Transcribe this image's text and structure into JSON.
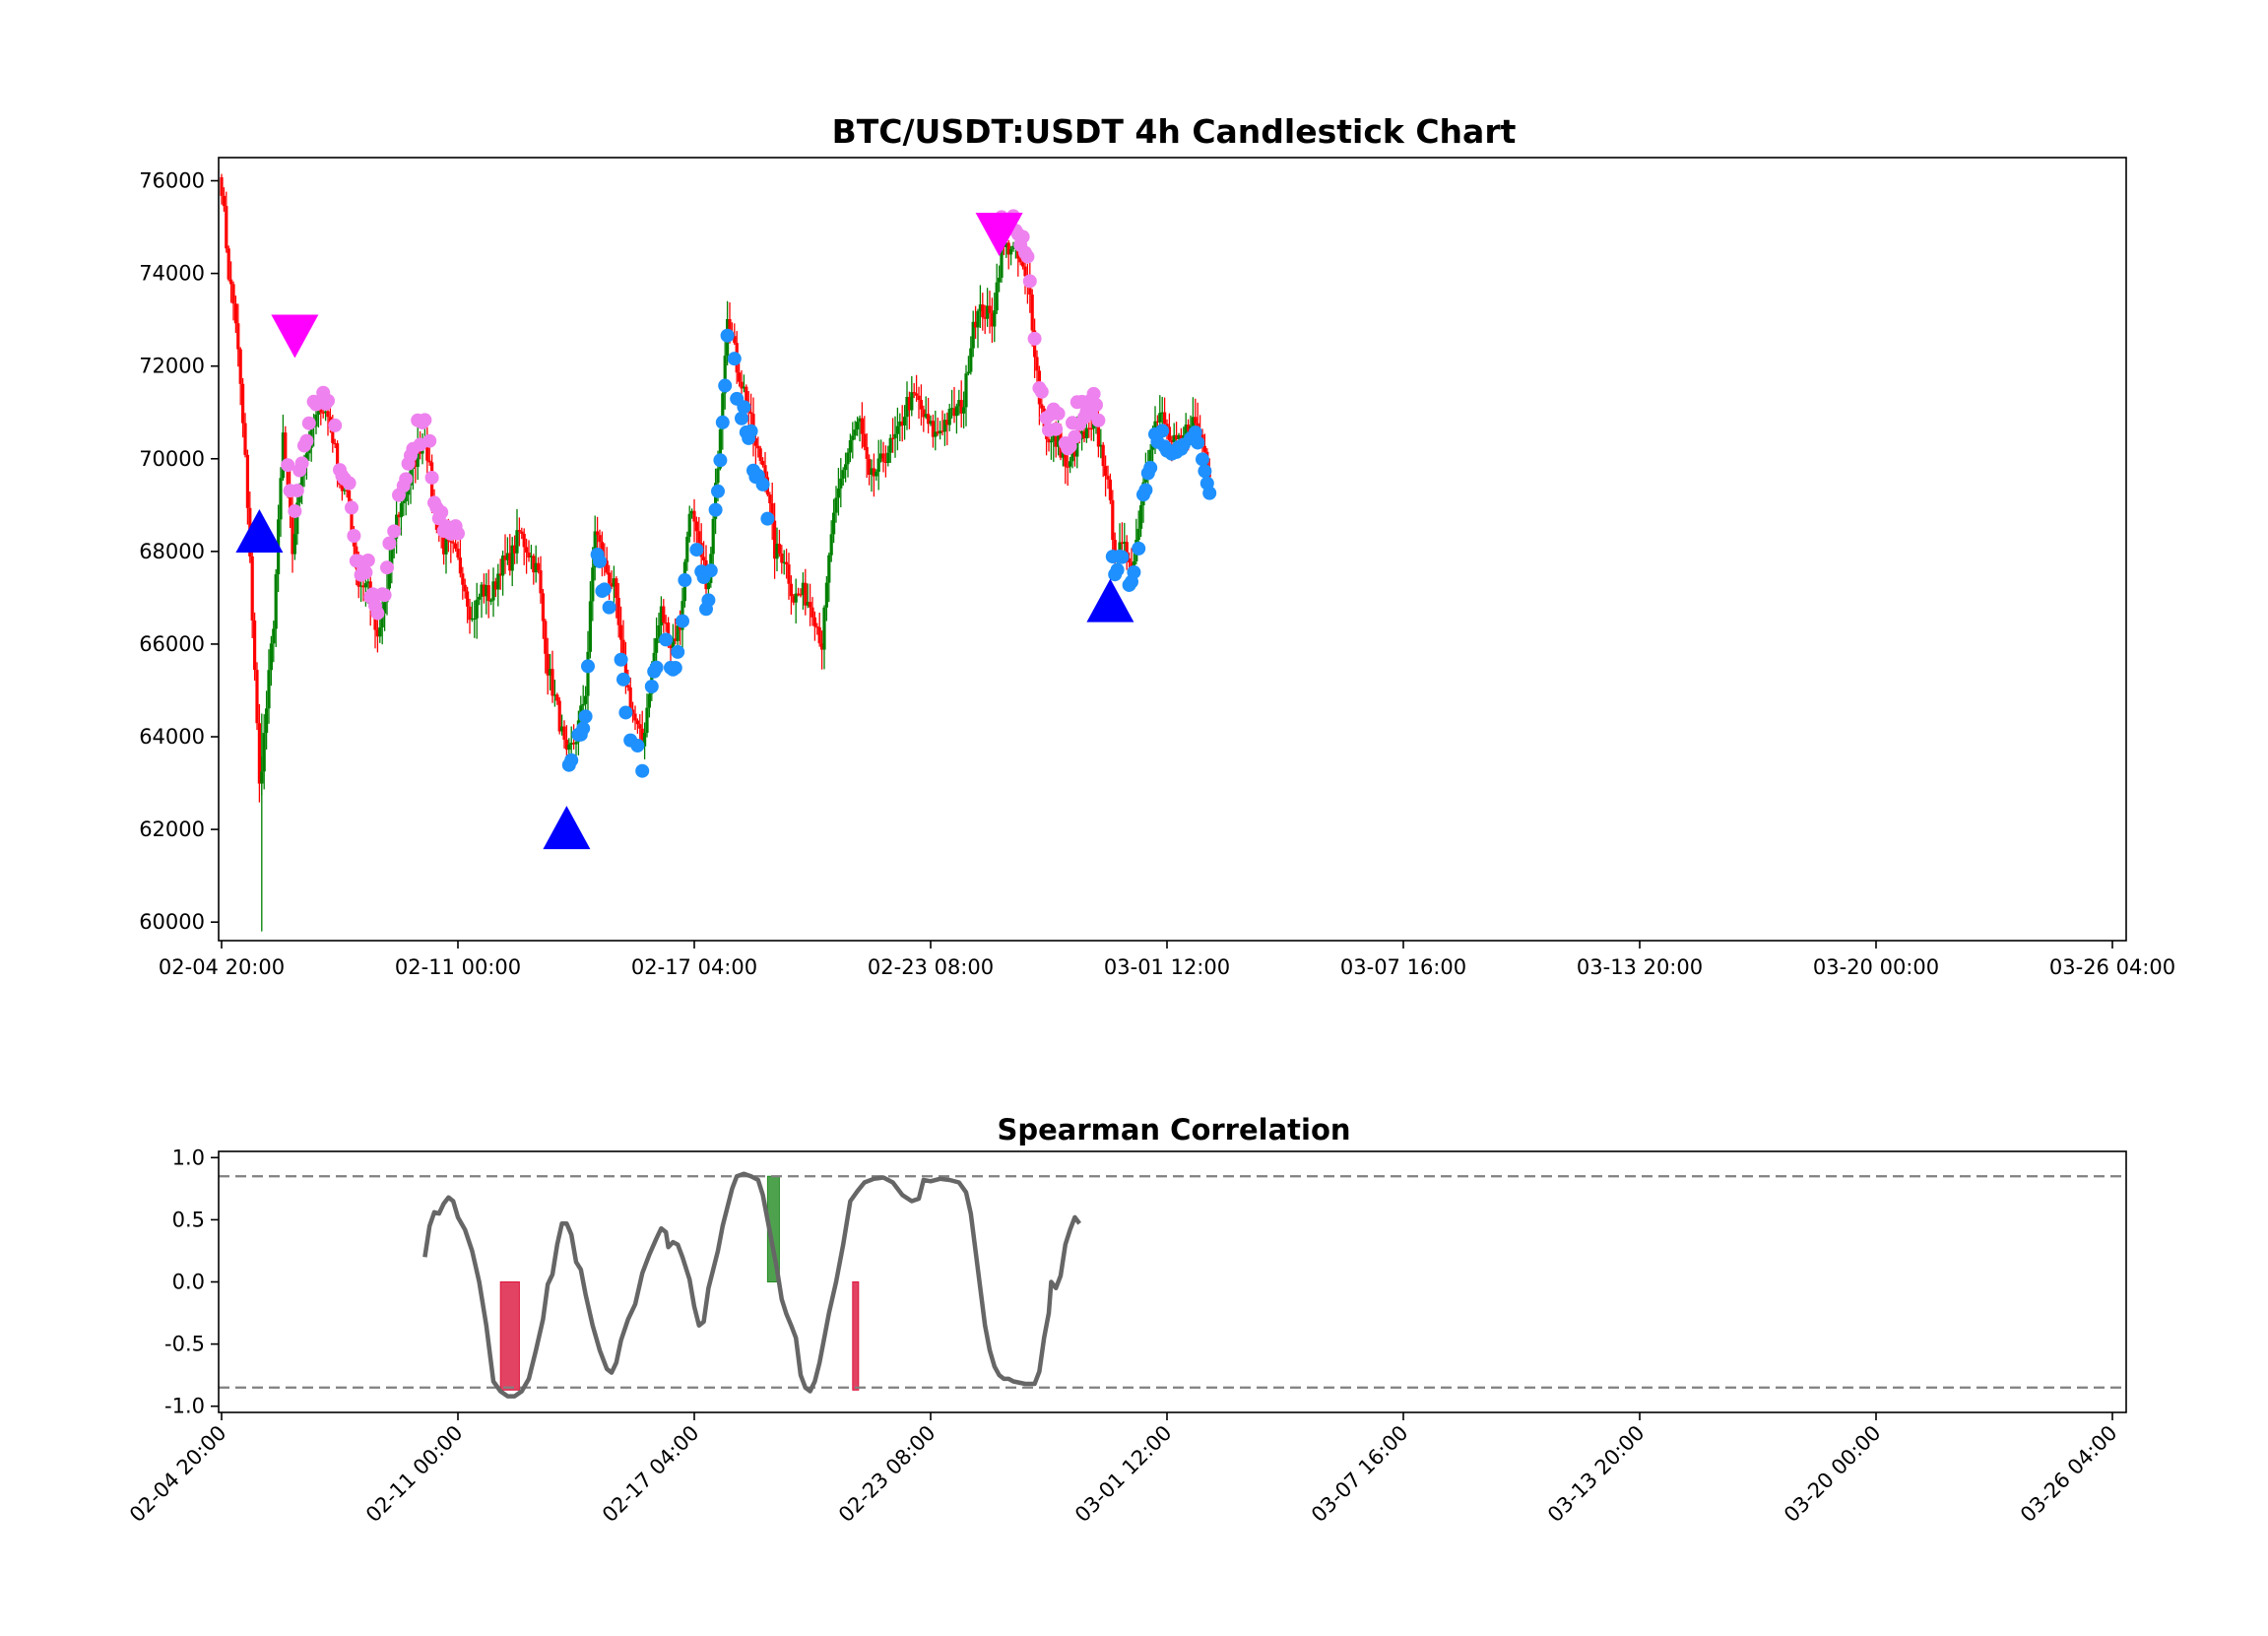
{
  "chart_data": [
    {
      "type": "candlestick",
      "title": "BTC/USDT:USDT 4h Candlestick Chart",
      "x_tick_labels": [
        "02-04 20:00",
        "02-11 00:00",
        "02-17 04:00",
        "02-23 08:00",
        "03-01 12:00",
        "03-07 16:00",
        "03-13 20:00",
        "03-20 00:00",
        "03-26 04:00"
      ],
      "y_ticks": [
        60000,
        62000,
        64000,
        66000,
        68000,
        70000,
        72000,
        74000,
        76000
      ],
      "ylim": [
        59600,
        76500
      ],
      "grid": false,
      "colors": {
        "up": "#008000",
        "down": "#ff0000",
        "buy_marker": "#0000ff",
        "sell_marker": "#ff00ff",
        "upper_dots": "#ee82ee",
        "lower_dots": "#1e90ff"
      },
      "price_anchors": [
        [
          0,
          75900
        ],
        [
          3,
          74000
        ],
        [
          6,
          73000
        ],
        [
          10,
          70000
        ],
        [
          14,
          65500
        ],
        [
          16,
          62900
        ],
        [
          18,
          64000
        ],
        [
          22,
          66500
        ],
        [
          26,
          70500
        ],
        [
          30,
          68000
        ],
        [
          34,
          69800
        ],
        [
          38,
          70500
        ],
        [
          42,
          71200
        ],
        [
          46,
          70800
        ],
        [
          50,
          69500
        ],
        [
          54,
          69000
        ],
        [
          58,
          67300
        ],
        [
          62,
          67300
        ],
        [
          66,
          66000
        ],
        [
          70,
          67200
        ],
        [
          74,
          68700
        ],
        [
          78,
          69300
        ],
        [
          82,
          70000
        ],
        [
          86,
          70600
        ],
        [
          90,
          68800
        ],
        [
          94,
          68100
        ],
        [
          98,
          68000
        ],
        [
          102,
          67500
        ],
        [
          106,
          66500
        ],
        [
          110,
          67200
        ],
        [
          114,
          67000
        ],
        [
          118,
          67700
        ],
        [
          122,
          67800
        ],
        [
          126,
          68400
        ],
        [
          130,
          68000
        ],
        [
          134,
          67500
        ],
        [
          138,
          65500
        ],
        [
          142,
          64600
        ],
        [
          146,
          63500
        ],
        [
          150,
          64000
        ],
        [
          154,
          65000
        ],
        [
          158,
          68500
        ],
        [
          162,
          67700
        ],
        [
          166,
          67200
        ],
        [
          170,
          65500
        ],
        [
          174,
          64500
        ],
        [
          178,
          63800
        ],
        [
          182,
          65500
        ],
        [
          186,
          66700
        ],
        [
          190,
          66000
        ],
        [
          194,
          66400
        ],
        [
          198,
          69000
        ],
        [
          202,
          68000
        ],
        [
          206,
          67200
        ],
        [
          210,
          70000
        ],
        [
          214,
          73200
        ],
        [
          218,
          72000
        ],
        [
          222,
          71300
        ],
        [
          226,
          70200
        ],
        [
          230,
          69800
        ],
        [
          234,
          68000
        ],
        [
          238,
          67900
        ],
        [
          242,
          67000
        ],
        [
          246,
          67100
        ],
        [
          250,
          66800
        ],
        [
          254,
          66000
        ],
        [
          258,
          68400
        ],
        [
          262,
          69500
        ],
        [
          266,
          70400
        ],
        [
          270,
          70800
        ],
        [
          274,
          69500
        ],
        [
          278,
          69800
        ],
        [
          282,
          70200
        ],
        [
          286,
          70500
        ],
        [
          290,
          71200
        ],
        [
          294,
          71300
        ],
        [
          298,
          70800
        ],
        [
          302,
          70500
        ],
        [
          306,
          70800
        ],
        [
          310,
          71000
        ],
        [
          314,
          71200
        ],
        [
          318,
          73000
        ],
        [
          322,
          73200
        ],
        [
          326,
          73000
        ],
        [
          330,
          74500
        ],
        [
          334,
          74600
        ],
        [
          338,
          74200
        ],
        [
          342,
          73500
        ],
        [
          346,
          71300
        ],
        [
          350,
          70300
        ],
        [
          354,
          70400
        ],
        [
          358,
          69700
        ],
        [
          362,
          70400
        ],
        [
          366,
          70500
        ],
        [
          370,
          70600
        ],
        [
          374,
          69800
        ],
        [
          378,
          68000
        ],
        [
          382,
          68000
        ],
        [
          386,
          67800
        ],
        [
          390,
          69500
        ],
        [
          394,
          70700
        ],
        [
          398,
          70900
        ],
        [
          402,
          70300
        ],
        [
          406,
          70300
        ],
        [
          410,
          70900
        ],
        [
          414,
          70500
        ],
        [
          418,
          69800
        ]
      ],
      "markers": {
        "buy": [
          {
            "index": 16,
            "price": 68400
          },
          {
            "index": 146,
            "price": 62000
          },
          {
            "index": 376,
            "price": 66900
          }
        ],
        "sell": [
          {
            "index": 31,
            "price": 72600
          },
          {
            "index": 329,
            "price": 74800
          }
        ]
      }
    },
    {
      "type": "line",
      "title": "Spearman Correlation",
      "x_tick_labels": [
        "02-04 20:00",
        "02-11 00:00",
        "02-17 04:00",
        "02-23 08:00",
        "03-01 12:00",
        "03-07 16:00",
        "03-13 20:00",
        "03-20 00:00",
        "03-26 04:00"
      ],
      "y_ticks": [
        1.0,
        0.5,
        0.0,
        -0.5,
        -1.0
      ],
      "y_tick_labels": [
        "1.0",
        "0.5",
        "0.0",
        "-0.5",
        "-1.0"
      ],
      "ylim": [
        -1.05,
        1.05
      ],
      "reference_lines": [
        0.85,
        -0.85
      ],
      "series": [
        {
          "points": [
            [
              86,
              0.2
            ],
            [
              88,
              0.45
            ],
            [
              90,
              0.56
            ],
            [
              92,
              0.55
            ],
            [
              94,
              0.63
            ],
            [
              96,
              0.68
            ],
            [
              98,
              0.65
            ],
            [
              100,
              0.52
            ],
            [
              103,
              0.42
            ],
            [
              106,
              0.25
            ],
            [
              109,
              0.0
            ],
            [
              112,
              -0.35
            ],
            [
              115,
              -0.8
            ],
            [
              118,
              -0.88
            ],
            [
              121,
              -0.92
            ],
            [
              124,
              -0.92
            ],
            [
              127,
              -0.88
            ],
            [
              130,
              -0.78
            ],
            [
              133,
              -0.55
            ],
            [
              136,
              -0.3
            ],
            [
              138,
              -0.02
            ],
            [
              140,
              0.06
            ],
            [
              142,
              0.3
            ],
            [
              144,
              0.47
            ],
            [
              146,
              0.47
            ],
            [
              148,
              0.38
            ],
            [
              150,
              0.16
            ],
            [
              152,
              0.1
            ],
            [
              154,
              -0.1
            ],
            [
              157,
              -0.35
            ],
            [
              160,
              -0.55
            ],
            [
              163,
              -0.7
            ],
            [
              165,
              -0.73
            ],
            [
              167,
              -0.65
            ],
            [
              169,
              -0.47
            ],
            [
              172,
              -0.3
            ],
            [
              175,
              -0.18
            ],
            [
              178,
              0.07
            ],
            [
              181,
              0.22
            ],
            [
              184,
              0.35
            ],
            [
              186,
              0.43
            ],
            [
              188,
              0.4
            ],
            [
              189,
              0.28
            ],
            [
              191,
              0.32
            ],
            [
              193,
              0.3
            ],
            [
              195,
              0.2
            ],
            [
              198,
              0.02
            ],
            [
              200,
              -0.2
            ],
            [
              202,
              -0.35
            ],
            [
              204,
              -0.32
            ],
            [
              206,
              -0.05
            ],
            [
              208,
              0.1
            ],
            [
              210,
              0.25
            ],
            [
              212,
              0.45
            ],
            [
              214,
              0.6
            ],
            [
              216,
              0.75
            ],
            [
              218,
              0.85
            ],
            [
              221,
              0.87
            ],
            [
              224,
              0.85
            ],
            [
              227,
              0.82
            ],
            [
              229,
              0.7
            ],
            [
              231,
              0.5
            ],
            [
              233,
              0.3
            ],
            [
              235,
              0.1
            ],
            [
              237,
              -0.14
            ],
            [
              239,
              -0.26
            ],
            [
              241,
              -0.35
            ],
            [
              243,
              -0.45
            ],
            [
              245,
              -0.75
            ],
            [
              247,
              -0.85
            ],
            [
              249,
              -0.88
            ],
            [
              251,
              -0.8
            ],
            [
              253,
              -0.65
            ],
            [
              255,
              -0.45
            ],
            [
              257,
              -0.25
            ],
            [
              260,
              0.0
            ],
            [
              263,
              0.3
            ],
            [
              266,
              0.65
            ],
            [
              269,
              0.73
            ],
            [
              272,
              0.8
            ],
            [
              276,
              0.83
            ],
            [
              280,
              0.84
            ],
            [
              284,
              0.8
            ],
            [
              288,
              0.7
            ],
            [
              292,
              0.65
            ],
            [
              295,
              0.67
            ],
            [
              297,
              0.82
            ],
            [
              300,
              0.81
            ],
            [
              304,
              0.83
            ],
            [
              308,
              0.82
            ],
            [
              312,
              0.8
            ],
            [
              315,
              0.72
            ],
            [
              317,
              0.55
            ],
            [
              319,
              0.25
            ],
            [
              321,
              -0.05
            ],
            [
              323,
              -0.35
            ],
            [
              325,
              -0.55
            ],
            [
              327,
              -0.68
            ],
            [
              329,
              -0.75
            ],
            [
              331,
              -0.78
            ],
            [
              333,
              -0.78
            ],
            [
              335,
              -0.8
            ],
            [
              340,
              -0.82
            ],
            [
              344,
              -0.82
            ],
            [
              346,
              -0.72
            ],
            [
              348,
              -0.45
            ],
            [
              350,
              -0.25
            ],
            [
              351,
              0.0
            ],
            [
              353,
              -0.05
            ],
            [
              355,
              0.05
            ],
            [
              357,
              0.3
            ],
            [
              359,
              0.42
            ],
            [
              361,
              0.52
            ],
            [
              363,
              0.47
            ]
          ]
        }
      ],
      "bars": [
        {
          "start": 118,
          "end": 126,
          "value": -0.87,
          "color": "#dc143c"
        },
        {
          "start": 231,
          "end": 236,
          "value": 0.85,
          "color": "#228b22"
        },
        {
          "start": 267,
          "end": 268.5,
          "value": -0.87,
          "color": "#dc143c"
        }
      ]
    }
  ]
}
